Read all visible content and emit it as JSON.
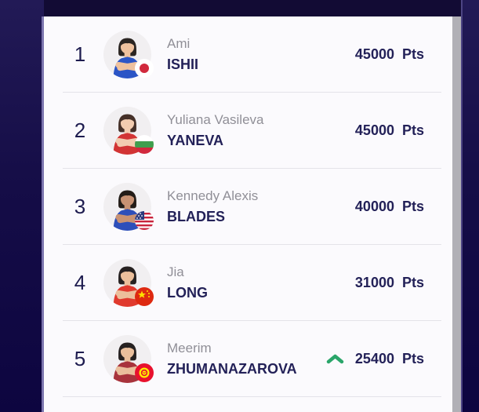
{
  "list": {
    "rows": [
      {
        "rank": "1",
        "first_name": "Ami",
        "last_name": "ISHII",
        "points": "45000",
        "unit": "Pts",
        "country": "Japan",
        "country_code": "JPN",
        "trend": "none",
        "avatar_colors": {
          "singlet": "#2b55c6",
          "skin": "#eec19e",
          "hair": "#2b2522"
        }
      },
      {
        "rank": "2",
        "first_name": "Yuliana Vasileva",
        "last_name": "YANEVA",
        "points": "45000",
        "unit": "Pts",
        "country": "Bulgaria",
        "country_code": "BGR",
        "trend": "none",
        "avatar_colors": {
          "singlet": "#d23434",
          "skin": "#f2ccb0",
          "hair": "#453028"
        }
      },
      {
        "rank": "3",
        "first_name": "Kennedy Alexis",
        "last_name": "BLADES",
        "points": "40000",
        "unit": "Pts",
        "country": "United States",
        "country_code": "USA",
        "trend": "none",
        "avatar_colors": {
          "singlet": "#2d4fba",
          "skin": "#c89273",
          "hair": "#241d18"
        }
      },
      {
        "rank": "4",
        "first_name": "Jia",
        "last_name": "LONG",
        "points": "31000",
        "unit": "Pts",
        "country": "China",
        "country_code": "CHN",
        "trend": "none",
        "avatar_colors": {
          "singlet": "#e03a2e",
          "skin": "#ecbf9b",
          "hair": "#262120"
        }
      },
      {
        "rank": "5",
        "first_name": "Meerim",
        "last_name": "ZHUMANAZAROVA",
        "points": "25400",
        "unit": "Pts",
        "country": "Kyrgyzstan",
        "country_code": "KGZ",
        "trend": "up",
        "avatar_colors": {
          "singlet": "#a8333c",
          "skin": "#eabf9c",
          "hair": "#262120"
        }
      }
    ],
    "trend_up_color": "#2aa56a"
  }
}
